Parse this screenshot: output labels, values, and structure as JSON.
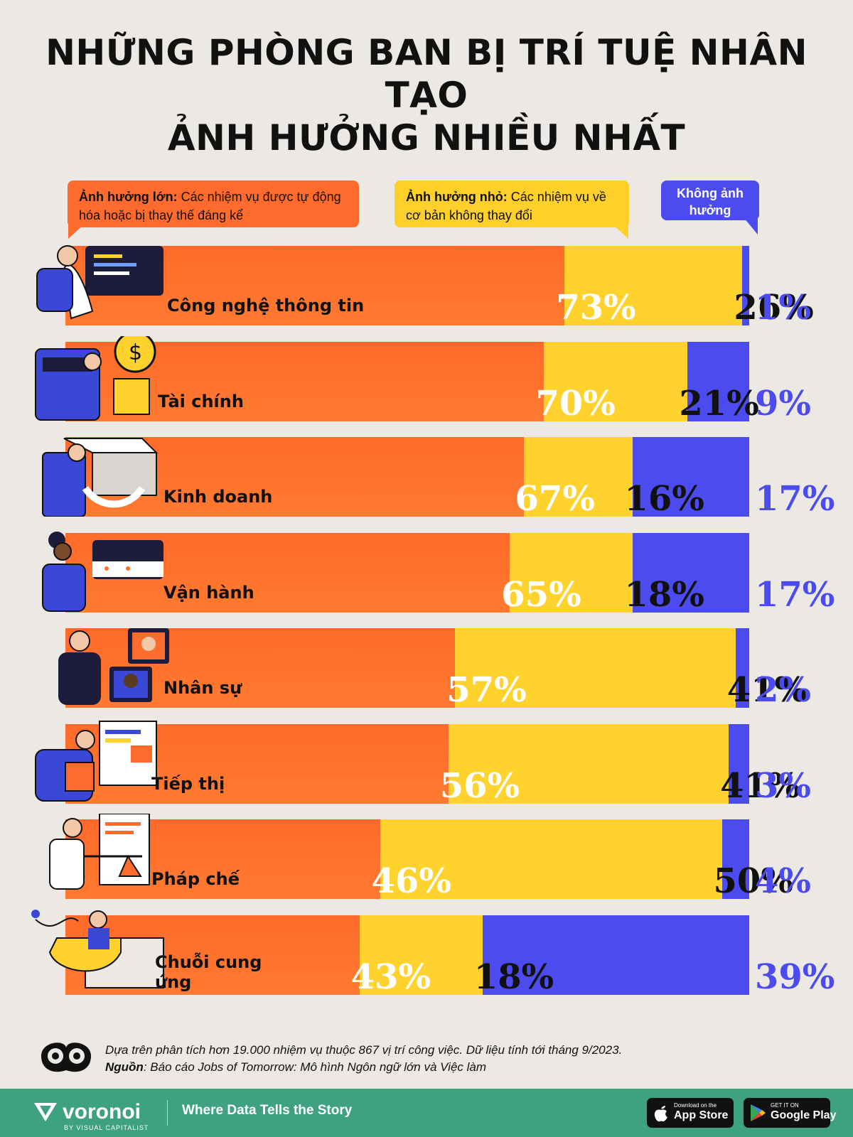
{
  "title": {
    "line1": "NHỮNG PHÒNG BAN BỊ TRÍ TUỆ NHÂN TẠO",
    "line2": "ẢNH HƯỞNG NHIỀU NHẤT"
  },
  "legend": {
    "major_bold": "Ảnh hưởng lớn:",
    "major_text": " Các nhiệm vụ được tự động hóa hoặc bị thay thế đáng kể",
    "minor_bold": "Ảnh hưởng nhỏ:",
    "minor_text": " Các nhiệm vụ về cơ bản không thay đổi",
    "none_label": "Không ảnh hưởng"
  },
  "colors": {
    "major": "#FF6B2C",
    "minor": "#FFD22E",
    "none": "#4B4BF0",
    "background": "#ECE9E4",
    "footer_bar": "#3FA27E"
  },
  "chart_data": {
    "type": "bar",
    "orientation": "horizontal",
    "stacked": true,
    "unit": "%",
    "categories": [
      "Công nghệ thông tin",
      "Tài chính",
      "Kinh doanh",
      "Vận hành",
      "Nhân sự",
      "Tiếp thị",
      "Pháp chế",
      "Chuỗi cung ứng"
    ],
    "series": [
      {
        "name": "Ảnh hưởng lớn",
        "color": "#FF6B2C",
        "values": [
          73,
          70,
          67,
          65,
          57,
          56,
          46,
          43
        ]
      },
      {
        "name": "Ảnh hưởng nhỏ",
        "color": "#FFD22E",
        "values": [
          26,
          21,
          16,
          18,
          41,
          41,
          50,
          18
        ]
      },
      {
        "name": "Không ảnh hưởng",
        "color": "#4B4BF0",
        "values": [
          1,
          9,
          17,
          17,
          2,
          3,
          4,
          39
        ]
      }
    ],
    "category_icons": [
      "it-worker-icon",
      "finance-calculator-icon",
      "business-box-icon",
      "operations-calendar-icon",
      "hr-people-icon",
      "marketing-board-icon",
      "legal-scales-icon",
      "supply-chain-icon"
    ]
  },
  "footer": {
    "note": "Dựa trên phân tích hơn 19.000 nhiệm vụ thuộc 867 vị trí công việc. Dữ liệu tính tới tháng 9/2023.",
    "source_bold": "Nguồn",
    "source_text": ": Báo cáo Jobs of Tomorrow: Mô hình Ngôn ngữ lớn và Việc làm"
  },
  "brand": {
    "name": "voronoi",
    "sub": "BY VISUAL CAPITALIST",
    "tagline": "Where Data Tells the Story",
    "appstore_small": "Download on the",
    "appstore_big": "App Store",
    "googleplay_small": "GET IT ON",
    "googleplay_big": "Google Play"
  }
}
